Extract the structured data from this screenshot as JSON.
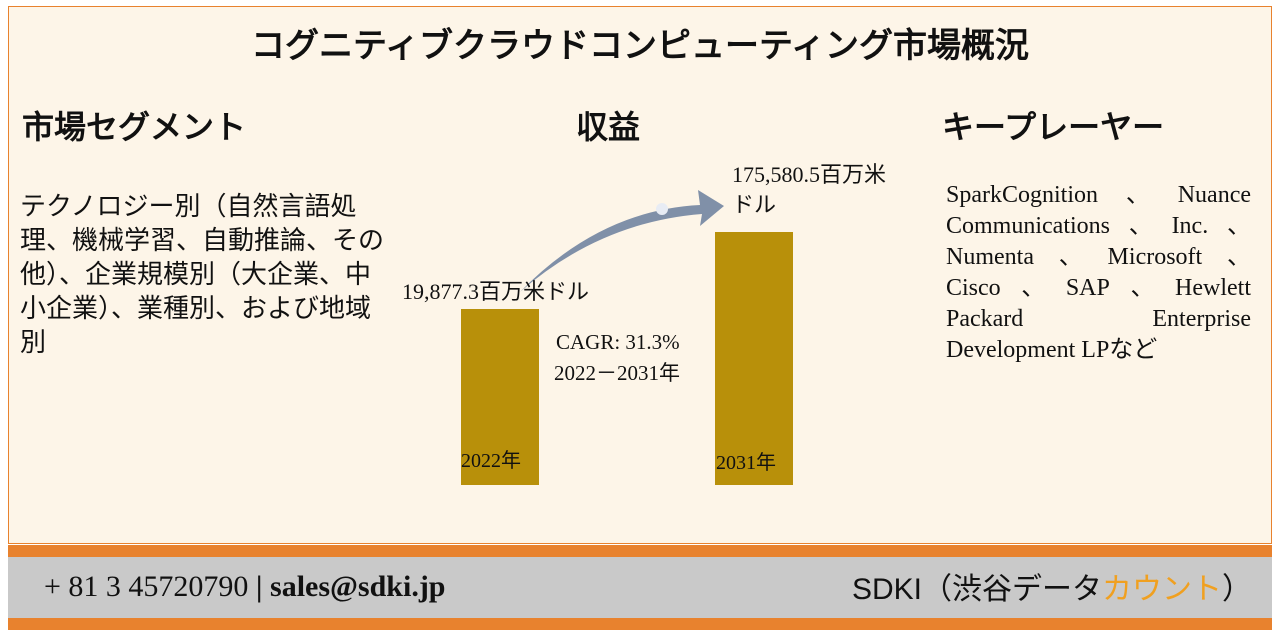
{
  "title": "コグニティブクラウドコンピューティング市場概況",
  "segments": {
    "heading": "市場セグメント",
    "text": "テクノロジー別（自然言語処理、機械学習、自動推論、その他）、企業規模別（大企業、中小企業）、業種別、および地域別"
  },
  "revenue": {
    "heading": "収益",
    "start_label": "19,877.3百万米ドル",
    "end_label": "175,580.5百万米ドル",
    "cagr": "CAGR: 31.3%",
    "period": "2022－2031年",
    "start_year": "2022年",
    "end_year": "2031年"
  },
  "players": {
    "heading": "キープレーヤー",
    "text": "SparkCognition、Nuance Communications、Inc.、Numenta、Microsoft、Cisco、SAP、Hewlett Packard Enterprise Development LPなど"
  },
  "footer": {
    "phone": "+ 81 3 45720790",
    "separator": "|",
    "email": "sales@sdki.jp",
    "brand": "SDKI（渋谷データ",
    "brand_accent": "カウント",
    "brand_close": "）"
  }
}
